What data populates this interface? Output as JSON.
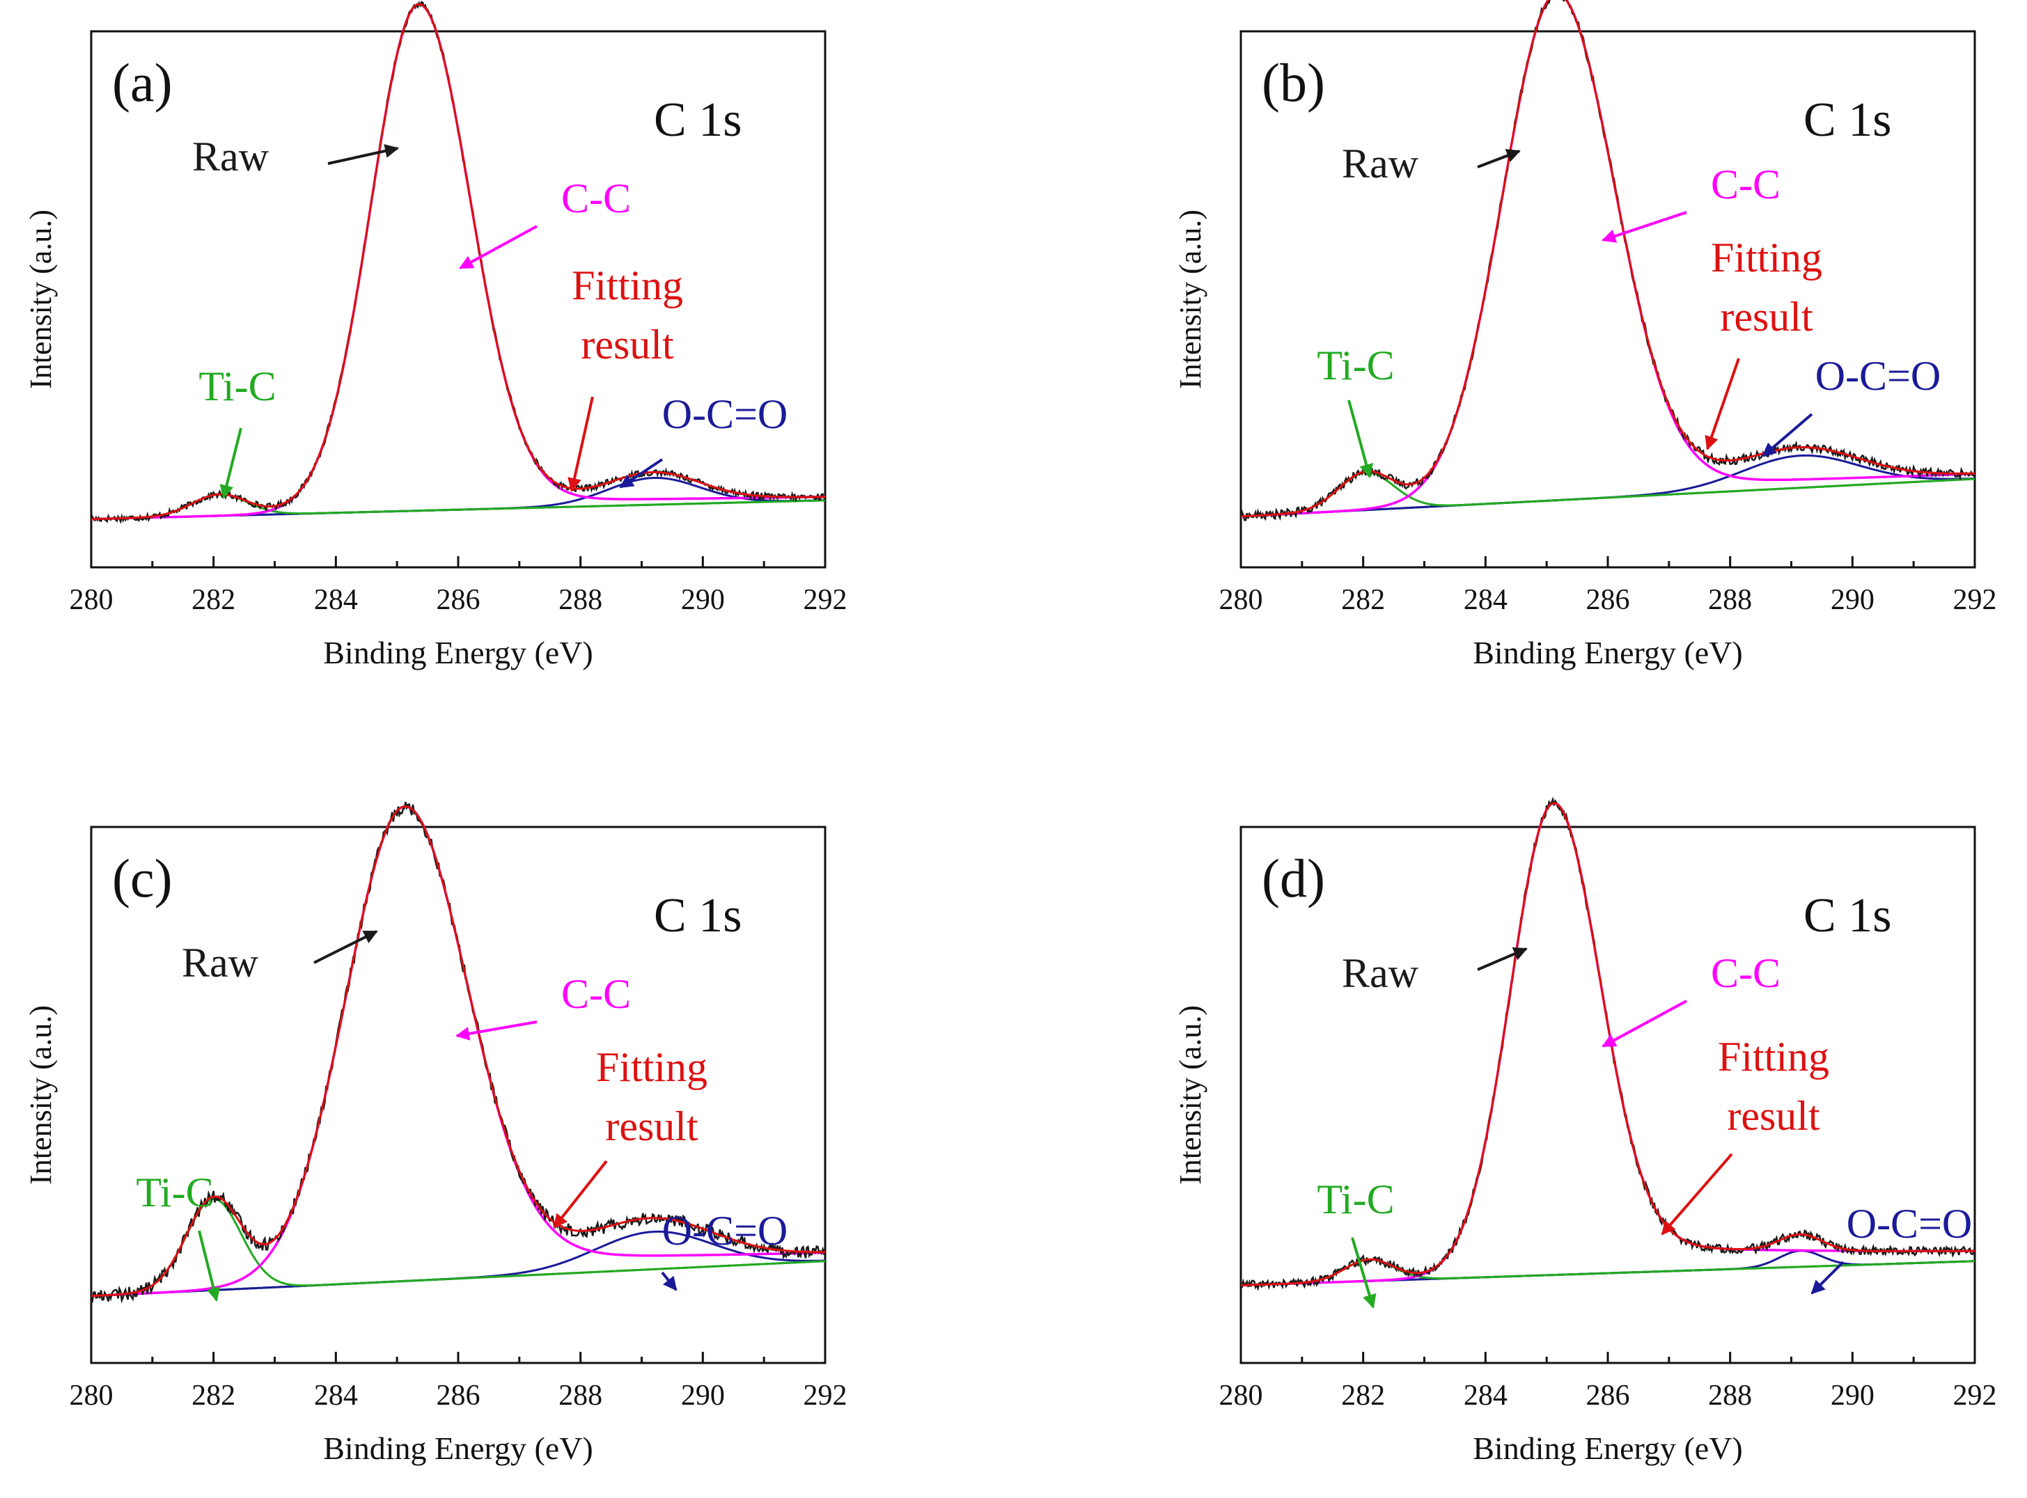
{
  "colors": {
    "raw": "#1a1a1a",
    "cc": "#ff00ff",
    "fit": "#dd1111",
    "tic": "#22aa22",
    "oco": "#1a1a99",
    "baseline": "#228822"
  },
  "shared": {
    "xlabel": "Binding Energy (eV)",
    "ylabel": "Intensity (a.u.)",
    "xlim": [
      280,
      292
    ],
    "xticks": [
      280,
      282,
      284,
      286,
      288,
      290,
      292
    ],
    "region": "C 1s",
    "labels": {
      "raw": "Raw",
      "cc": "C-C",
      "fit_line1": "Fitting",
      "fit_line2": "result",
      "tic": "Ti-C",
      "oco": "O-C=O"
    }
  },
  "chart_data": [
    {
      "type": "line",
      "panel": "(a)",
      "title": "C 1s",
      "xlabel": "Binding Energy (eV)",
      "ylabel": "Intensity (a.u.)",
      "xlim": [
        280,
        292
      ],
      "ylim": [
        0,
        1.0
      ],
      "baseline": [
        0.09,
        0.125
      ],
      "peaks": [
        {
          "name": "Ti-C",
          "center": 282.1,
          "height": 0.04,
          "sigma": 0.45
        },
        {
          "name": "C-C",
          "center": 285.35,
          "height": 0.935,
          "sigma": 0.78,
          "tail": 0.02
        },
        {
          "name": "O-C=O",
          "center": 289.2,
          "height": 0.05,
          "sigma": 0.75
        }
      ],
      "noise": 0.006
    },
    {
      "type": "line",
      "panel": "(b)",
      "title": "C 1s",
      "xlabel": "Binding Energy (eV)",
      "ylabel": "Intensity (a.u.)",
      "xlim": [
        280,
        292
      ],
      "ylim": [
        0,
        1.0
      ],
      "baseline": [
        0.095,
        0.165
      ],
      "peaks": [
        {
          "name": "Ti-C",
          "center": 282.05,
          "height": 0.07,
          "sigma": 0.45
        },
        {
          "name": "C-C",
          "center": 285.15,
          "height": 0.93,
          "sigma": 0.88,
          "tail": 0.03
        },
        {
          "name": "O-C=O",
          "center": 289.15,
          "height": 0.06,
          "sigma": 0.95
        }
      ],
      "noise": 0.008
    },
    {
      "type": "line",
      "panel": "(c)",
      "title": "C 1s",
      "xlabel": "Binding Energy (eV)",
      "ylabel": "Intensity (a.u.)",
      "xlim": [
        280,
        292
      ],
      "ylim": [
        0,
        1.0
      ],
      "baseline": [
        0.125,
        0.19
      ],
      "peaks": [
        {
          "name": "Ti-C",
          "center": 282.0,
          "height": 0.17,
          "sigma": 0.45
        },
        {
          "name": "C-C",
          "center": 285.1,
          "height": 0.86,
          "sigma": 0.95,
          "tail": 0.05
        },
        {
          "name": "O-C=O",
          "center": 289.2,
          "height": 0.07,
          "sigma": 0.95
        }
      ],
      "noise": 0.012
    },
    {
      "type": "line",
      "panel": "(d)",
      "title": "C 1s",
      "xlabel": "Binding Energy (eV)",
      "ylabel": "Intensity (a.u.)",
      "xlim": [
        280,
        292
      ],
      "ylim": [
        0,
        1.0
      ],
      "baseline": [
        0.145,
        0.19
      ],
      "peaks": [
        {
          "name": "Ti-C",
          "center": 282.1,
          "height": 0.04,
          "sigma": 0.4
        },
        {
          "name": "C-C",
          "center": 285.1,
          "height": 0.85,
          "sigma": 0.7,
          "tail": 0.06
        },
        {
          "name": "O-C=O",
          "center": 289.15,
          "height": 0.03,
          "sigma": 0.35
        }
      ],
      "noise": 0.008
    }
  ]
}
